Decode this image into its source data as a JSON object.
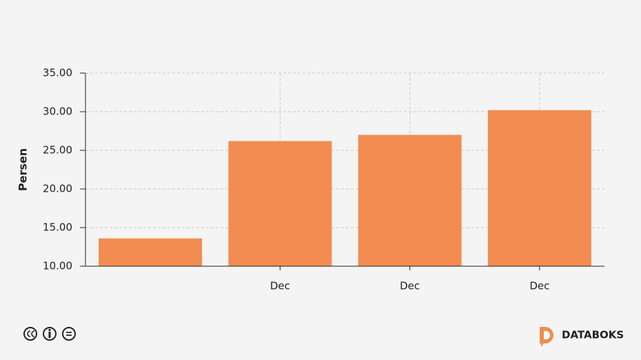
{
  "chart_data": {
    "type": "bar",
    "y_label": "Persen",
    "categories": [
      null,
      "Dec",
      "Dec",
      "Dec"
    ],
    "values": [
      13.6,
      26.2,
      27.0,
      30.2
    ],
    "color": "#f28c51",
    "ylim": [
      10,
      35
    ],
    "yticks": [
      {
        "value": 10,
        "label": "10.00"
      },
      {
        "value": 15,
        "label": "15.00"
      },
      {
        "value": 20,
        "label": "20.00"
      },
      {
        "value": 25,
        "label": "25.00"
      },
      {
        "value": 30,
        "label": "30.00"
      },
      {
        "value": 35,
        "label": "35.00"
      }
    ],
    "grid": true
  },
  "footer": {
    "brand": "DATABOKS"
  }
}
